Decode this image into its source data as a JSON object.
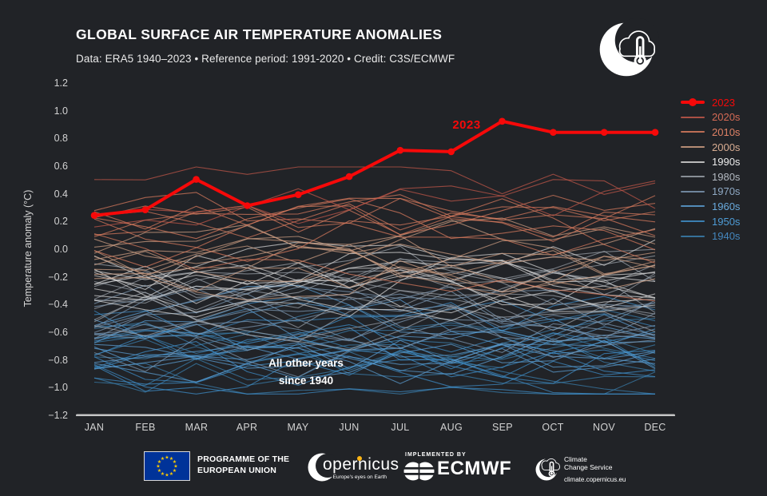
{
  "page": {
    "background": "#212327",
    "accent_red": "#f60909",
    "axis_line_color": "#c6c6c6"
  },
  "header": {
    "title": "GLOBAL SURFACE AIR TEMPERATURE ANOMALIES",
    "subtitle": "Data: ERA5 1940–2023 • Reference period: 1991-2020 • Credit: C3S/ECMWF"
  },
  "chart_data": {
    "type": "line",
    "title": "GLOBAL SURFACE AIR TEMPERATURE ANOMALIES",
    "xlabel": "",
    "ylabel": "Temperature anomaly (°C)",
    "categories": [
      "JAN",
      "FEB",
      "MAR",
      "APR",
      "MAY",
      "JUN",
      "JUL",
      "AUG",
      "SEP",
      "OCT",
      "NOV",
      "DEC"
    ],
    "y_ticks": [
      "1.2",
      "1.0",
      "0.8",
      "0.6",
      "0.4",
      "0.2",
      "0.0",
      "−0.2",
      "−0.4",
      "−0.6",
      "−0.8",
      "−1.0",
      "−1.2"
    ],
    "ylim": [
      -1.2,
      1.2
    ],
    "grid": false,
    "legend_position": "right",
    "highlight_series": {
      "name": "2023",
      "color": "#f60909",
      "values": [
        0.25,
        0.29,
        0.51,
        0.32,
        0.4,
        0.53,
        0.72,
        0.71,
        0.93,
        0.85,
        0.85,
        0.85
      ]
    },
    "note": "One thin line per year 1940–2022 (83 lines), colored by decade; bands below give each decade's mean anomaly and spread read from the plot",
    "decade_bands": [
      {
        "name": "1940s",
        "line_color": "#3a7fae",
        "label_color": "#4486bd",
        "years": 10,
        "mean": -0.78,
        "spread": 0.2
      },
      {
        "name": "1950s",
        "line_color": "#3f8fca",
        "label_color": "#4e9cd6",
        "years": 10,
        "mean": -0.72,
        "spread": 0.18
      },
      {
        "name": "1960s",
        "line_color": "#5b9ed2",
        "label_color": "#69aadd",
        "years": 10,
        "mean": -0.67,
        "spread": 0.18
      },
      {
        "name": "1970s",
        "line_color": "#7b97b2",
        "label_color": "#8fa9c4",
        "years": 10,
        "mean": -0.57,
        "spread": 0.2
      },
      {
        "name": "1980s",
        "line_color": "#9aa1a9",
        "label_color": "#b3b9c1",
        "years": 10,
        "mean": -0.34,
        "spread": 0.17
      },
      {
        "name": "1990s",
        "line_color": "#d6d6d6",
        "label_color": "#ececec",
        "years": 10,
        "mean": -0.18,
        "spread": 0.16
      },
      {
        "name": "2000s",
        "line_color": "#cf9f83",
        "label_color": "#d9ad92",
        "years": 10,
        "mean": -0.02,
        "spread": 0.15
      },
      {
        "name": "2010s",
        "line_color": "#d97b5e",
        "label_color": "#e08266",
        "years": 10,
        "mean": 0.18,
        "spread": 0.17
      },
      {
        "name": "2020s",
        "line_color": "#c2584a",
        "label_color": "#d56a55",
        "years": 3,
        "mean": 0.38,
        "spread": 0.14
      }
    ],
    "annotations": {
      "callout_2023": "2023",
      "other_years_line1": "All other years",
      "other_years_line2": "since 1940"
    }
  },
  "footer": {
    "eu": {
      "line1": "PROGRAMME OF THE",
      "line2": "EUROPEAN UNION",
      "flag_blue": "#003399",
      "star_yellow": "#ffcc00"
    },
    "copernicus": {
      "name_rest": "opernicus",
      "tagline": "Europe's eyes on Earth",
      "dot_yellow": "#fdb515"
    },
    "ecmwf": {
      "implemented_by": "IMPLEMENTED BY",
      "name": "ECMWF"
    },
    "c3s": {
      "line1": "Climate",
      "line2": "Change Service",
      "url": "climate.copernicus.eu"
    }
  }
}
